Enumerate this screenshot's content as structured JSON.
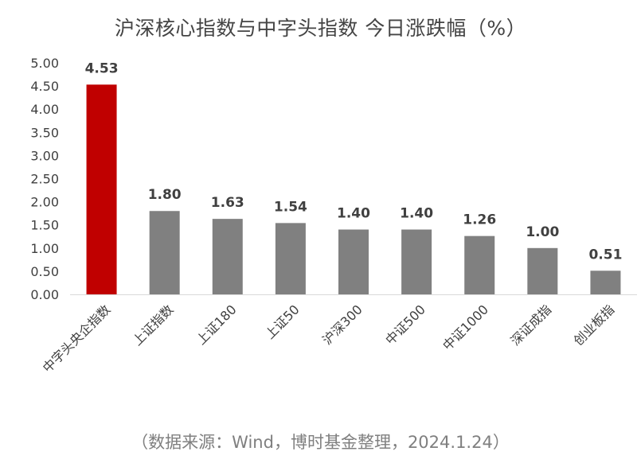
{
  "title": "沪深核心指数与中字头指数 今日涨跌幅（%）",
  "source": "（数据来源：Wind，博时基金整理，2024.1.24）",
  "colors": {
    "highlight": "#c00000",
    "bar": "#808080",
    "highlight_label": "#c00000",
    "label": "#404040"
  },
  "chart_data": {
    "type": "bar",
    "title": "沪深核心指数与中字头指数 今日涨跌幅（%）",
    "categories": [
      "中字头央企指数",
      "上证指数",
      "上证180",
      "上证50",
      "沪深300",
      "中证500",
      "中证1000",
      "深证成指",
      "创业板指"
    ],
    "values": [
      4.53,
      1.8,
      1.63,
      1.54,
      1.4,
      1.4,
      1.26,
      1.0,
      0.51
    ],
    "value_labels": [
      "4.53",
      "1.80",
      "1.63",
      "1.54",
      "1.40",
      "1.40",
      "1.26",
      "1.00",
      "0.51"
    ],
    "highlight_index": 0,
    "ylim": [
      0,
      5
    ],
    "yticks": [
      "0.00",
      "0.50",
      "1.00",
      "1.50",
      "2.00",
      "2.50",
      "3.00",
      "3.50",
      "4.00",
      "4.50",
      "5.00"
    ],
    "ytick_values": [
      0,
      0.5,
      1,
      1.5,
      2,
      2.5,
      3,
      3.5,
      4,
      4.5,
      5
    ],
    "xlabel": "",
    "ylabel": "",
    "grid": false,
    "legend": "none"
  }
}
